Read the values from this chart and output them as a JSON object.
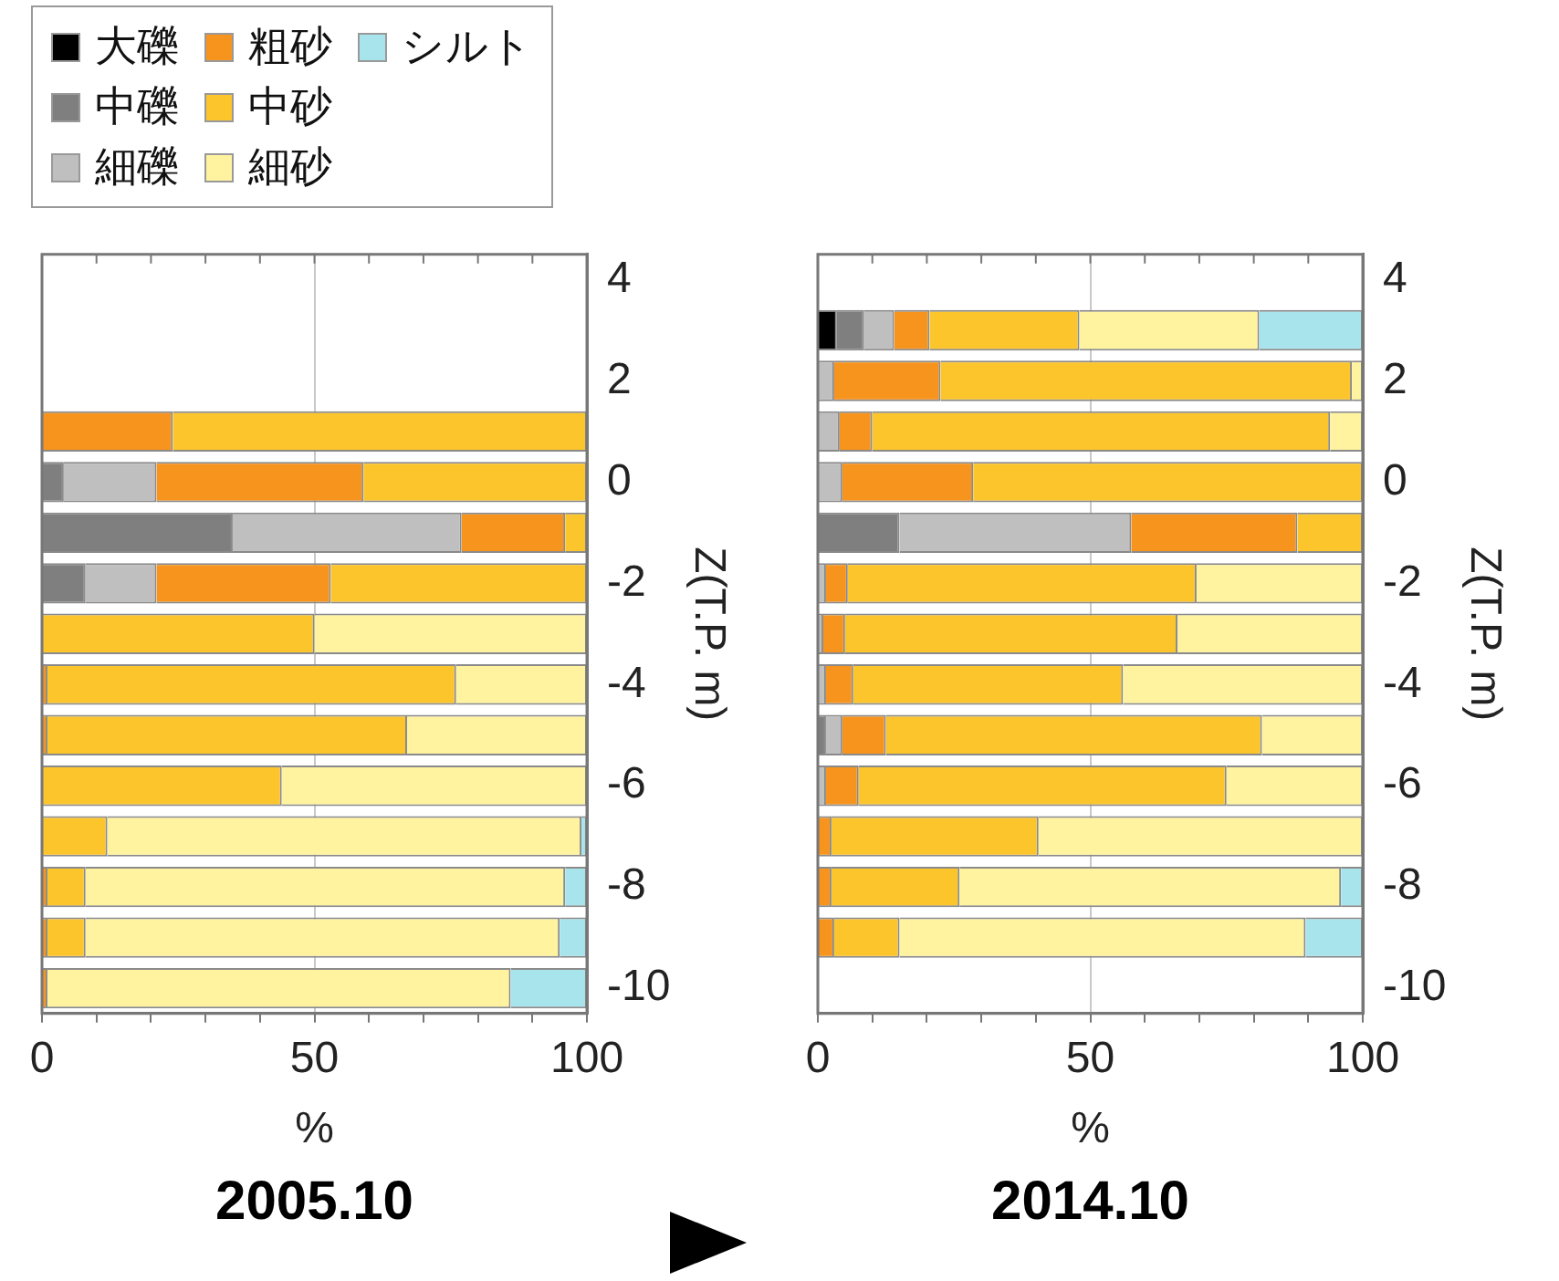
{
  "chart_data": [
    {
      "type": "bar",
      "orientation": "horizontal",
      "stacked": true,
      "xlabel": "%",
      "ylabel": "Z(T.P. m)",
      "legend": "top left",
      "grid": "x",
      "x": [
        1,
        0,
        -1,
        -2,
        -3,
        -4,
        -5,
        -6,
        -7,
        -8,
        -9,
        -10
      ],
      "xlim": [
        0,
        100
      ],
      "xticks": [
        0,
        {
          "value": 10,
          "label": null
        },
        {
          "value": 20,
          "label": null
        },
        {
          "value": 30,
          "label": null
        },
        {
          "value": 40,
          "label": null
        },
        50,
        {
          "value": 60,
          "label": null
        },
        {
          "value": 70,
          "label": null
        },
        {
          "value": 80,
          "label": null
        },
        {
          "value": 90,
          "label": null
        },
        100
      ],
      "ylim": [
        -10.5,
        4.5
      ],
      "yticks": [
        -10,
        -8,
        -6,
        -4,
        -2,
        0,
        2,
        4
      ],
      "series": [
        {
          "name": "大礫",
          "color": "#000000",
          "values": [
            null,
            null,
            null,
            null,
            null,
            null,
            null,
            null,
            null,
            null,
            null,
            null
          ]
        },
        {
          "name": "中礫",
          "color": "#7f7f7f",
          "values": [
            null,
            4,
            35,
            8,
            null,
            null,
            null,
            null,
            null,
            null,
            null,
            null
          ]
        },
        {
          "name": "細礫",
          "color": "#bfbfbf",
          "values": [
            null,
            17,
            42,
            13,
            null,
            null,
            null,
            null,
            null,
            null,
            null,
            null
          ]
        },
        {
          "name": "粗砂",
          "color": "#f7941d",
          "values": [
            24,
            38,
            19,
            32,
            null,
            1,
            1,
            null,
            null,
            1,
            1,
            1
          ]
        },
        {
          "name": "中砂",
          "color": "#fcc52c",
          "values": [
            76,
            41,
            4,
            47,
            50,
            75,
            66,
            44,
            12,
            7,
            7,
            null
          ]
        },
        {
          "name": "細砂",
          "color": "#fff3a0",
          "values": [
            null,
            null,
            null,
            null,
            50,
            24,
            33,
            56,
            87,
            88,
            87,
            85
          ]
        },
        {
          "name": "シルト",
          "color": "#a8e4ec",
          "values": [
            null,
            null,
            null,
            null,
            null,
            null,
            null,
            null,
            1,
            4,
            5,
            14
          ]
        }
      ],
      "annotations": [
        "2005.10"
      ]
    },
    {
      "type": "bar",
      "orientation": "horizontal",
      "stacked": true,
      "xlabel": "%",
      "ylabel": "Z(T.P. m)",
      "grid": "x",
      "x": [
        3,
        2,
        1,
        0,
        -1,
        -2,
        -3,
        -4,
        -5,
        -6,
        -7,
        -8,
        -9
      ],
      "xlim": [
        0,
        100
      ],
      "xticks": [
        0,
        {
          "value": 10,
          "label": null
        },
        {
          "value": 20,
          "label": null
        },
        {
          "value": 30,
          "label": null
        },
        {
          "value": 40,
          "label": null
        },
        50,
        {
          "value": 60,
          "label": null
        },
        {
          "value": 70,
          "label": null
        },
        {
          "value": 80,
          "label": null
        },
        {
          "value": 90,
          "label": null
        },
        100
      ],
      "ylim": [
        -10.5,
        4.5
      ],
      "yticks": [
        -10,
        -8,
        -6,
        -4,
        -2,
        0,
        2,
        4
      ],
      "series": [
        {
          "color": "#000000",
          "values": [
            3.5,
            null,
            null,
            null,
            null,
            null,
            null,
            null,
            null,
            null,
            null,
            null,
            null
          ]
        },
        {
          "color": "#7f7f7f",
          "values": [
            5,
            null,
            null,
            null,
            15,
            null,
            null,
            null,
            1.5,
            null,
            null,
            null,
            null
          ]
        },
        {
          "color": "#bfbfbf",
          "values": [
            5.5,
            3,
            4,
            4.5,
            42.5,
            1.5,
            1,
            1.5,
            3,
            1.5,
            null,
            null,
            null
          ]
        },
        {
          "color": "#f7941d",
          "values": [
            6.5,
            19.5,
            6,
            24,
            30.5,
            4,
            4,
            5,
            8,
            6,
            2.5,
            2.5,
            3
          ]
        },
        {
          "color": "#fcc52c",
          "values": [
            27.5,
            75.5,
            84,
            71.5,
            12,
            64,
            61,
            49.5,
            69,
            67.5,
            38,
            23.5,
            12
          ]
        },
        {
          "color": "#fff3a0",
          "values": [
            33,
            2,
            6,
            null,
            null,
            30.5,
            34,
            44,
            18.5,
            25,
            59.5,
            70,
            74.5
          ]
        },
        {
          "color": "#a8e4ec",
          "values": [
            19,
            null,
            null,
            null,
            null,
            null,
            null,
            null,
            null,
            null,
            null,
            4,
            10.5
          ]
        }
      ],
      "annotations": [
        "2014.10"
      ]
    }
  ]
}
